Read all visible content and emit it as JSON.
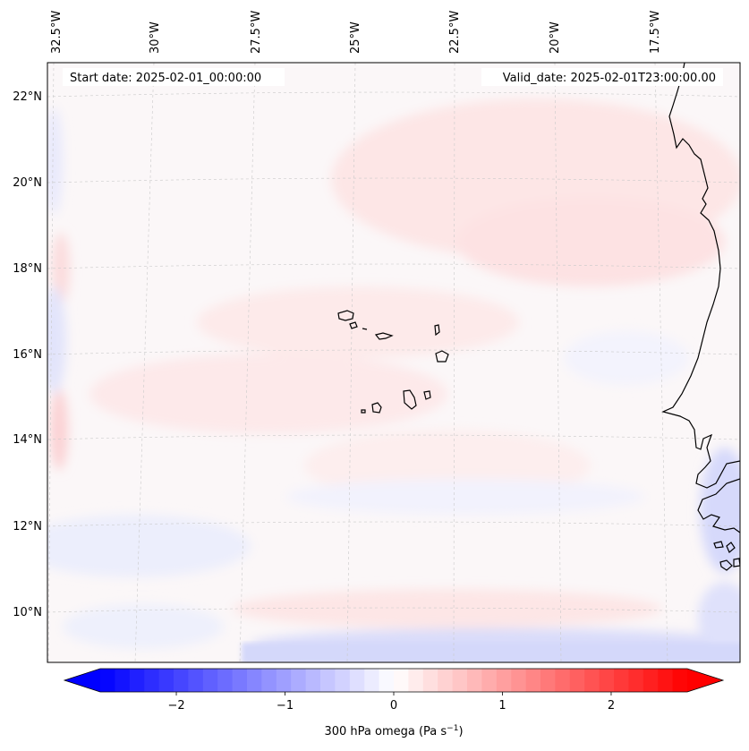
{
  "map": {
    "start_date_label": "Start date: 2025-02-01_00:00:00",
    "valid_date_label": "Valid_date: 2025-02-01T23:00:00.00",
    "longitude_ticks": [
      {
        "value": -32.5,
        "label": "32.5°W"
      },
      {
        "value": -30.0,
        "label": "30°W"
      },
      {
        "value": -27.5,
        "label": "27.5°W"
      },
      {
        "value": -25.0,
        "label": "25°W"
      },
      {
        "value": -22.5,
        "label": "22.5°W"
      },
      {
        "value": -20.0,
        "label": "20°W"
      },
      {
        "value": -17.5,
        "label": "17.5°W"
      }
    ],
    "latitude_ticks": [
      {
        "value": 22,
        "label": "22°N"
      },
      {
        "value": 20,
        "label": "20°N"
      },
      {
        "value": 18,
        "label": "18°N"
      },
      {
        "value": 16,
        "label": "16°N"
      },
      {
        "value": 14,
        "label": "14°N"
      },
      {
        "value": 12,
        "label": "12°N"
      },
      {
        "value": 10,
        "label": "10°N"
      }
    ],
    "features": {
      "region": "Cabo Verde islands and West African coast",
      "field_color_neutral": "#fbf7f8",
      "field_color_positive": "#fde4e4",
      "field_color_negative": "#e4e6fd",
      "coastline_color": "#000000"
    }
  },
  "colorbar": {
    "title": "300 hPa omega (Pa s⁻¹)",
    "title_base": "300 hPa omega (Pa s",
    "title_exp": "−1",
    "title_end": ")",
    "min": -2.7,
    "max": 2.7,
    "low_color": "#0000ff",
    "high_color": "#ff0000",
    "ticks": [
      {
        "value": -2,
        "label": "−2"
      },
      {
        "value": -1,
        "label": "−1"
      },
      {
        "value": 0,
        "label": "0"
      },
      {
        "value": 1,
        "label": "1"
      },
      {
        "value": 2,
        "label": "2"
      }
    ]
  }
}
